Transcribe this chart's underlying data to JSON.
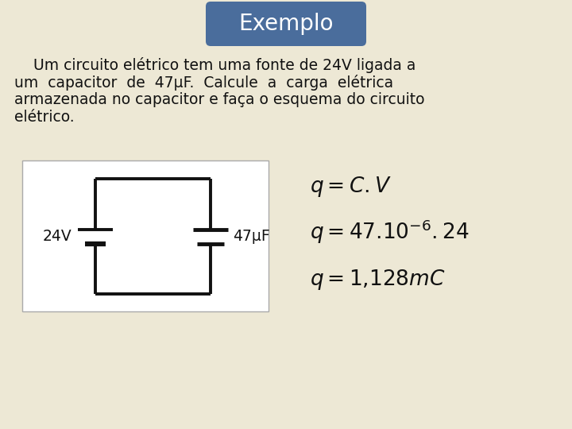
{
  "background_color": "#ede8d5",
  "title": "Exemplo",
  "title_bg_color": "#4a6d9c",
  "title_text_color": "#ffffff",
  "title_fontsize": 20,
  "body_line1": "    Um circuito elétrico tem uma fonte de 24V ligada a",
  "body_line2": "um  capacitor  de  47μF.  Calcule  a  carga  elétrica",
  "body_line3": "armazenada no capacitor e faça o esquema do circuito",
  "body_line4": "elétrico.",
  "body_fontsize": 13.5,
  "circuit_box_color": "#ffffff",
  "circuit_label_24v": "24V",
  "circuit_label_47uf": "47μF",
  "formula1": "$q = C.V$",
  "formula2": "$q = 47.10^{-6}.24$",
  "formula3": "$q = 1{,}128mC$",
  "formula_fontsize": 19,
  "text_color": "#111111",
  "line_color": "#111111",
  "circuit_lw": 2.8
}
